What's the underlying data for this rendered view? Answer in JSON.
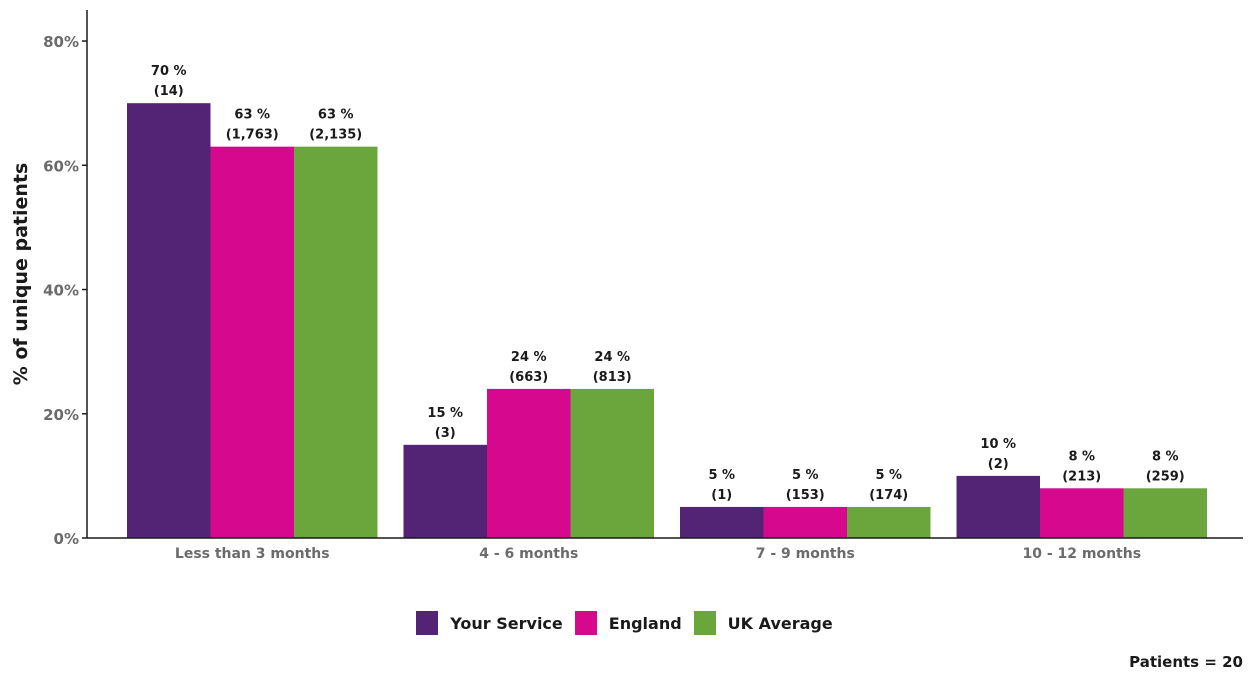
{
  "chart_data": {
    "type": "bar",
    "categories": [
      "Less than 3 months",
      "4 - 6 months",
      "7 - 9 months",
      "10 - 12 months"
    ],
    "series": [
      {
        "name": "Your Service",
        "color": "#532376",
        "values": [
          70,
          15,
          5,
          10
        ],
        "labels": [
          [
            "70 %",
            "(14)"
          ],
          [
            "15 %",
            "(3)"
          ],
          [
            "5 %",
            "(1)"
          ],
          [
            "10 %",
            "(2)"
          ]
        ]
      },
      {
        "name": "England",
        "color": "#d6088e",
        "values": [
          63,
          24,
          5,
          8
        ],
        "labels": [
          [
            "63 %",
            "(1,763)"
          ],
          [
            "24 %",
            "(663)"
          ],
          [
            "5 %",
            "(153)"
          ],
          [
            "8 %",
            "(213)"
          ]
        ]
      },
      {
        "name": "UK Average",
        "color": "#6aa63c",
        "values": [
          63,
          24,
          5,
          8
        ],
        "labels": [
          [
            "63 %",
            "(2,135)"
          ],
          [
            "24 %",
            "(813)"
          ],
          [
            "5 %",
            "(174)"
          ],
          [
            "8 %",
            "(259)"
          ]
        ]
      }
    ],
    "ylabel": "% of unique patients",
    "ylim": [
      0,
      85
    ],
    "yticks": [
      0,
      20,
      40,
      60,
      80
    ],
    "ytick_labels": [
      "0%",
      "20%",
      "40%",
      "60%",
      "80%"
    ],
    "legend_position": "bottom-center",
    "grid": false
  },
  "footnote": "Patients = 20"
}
